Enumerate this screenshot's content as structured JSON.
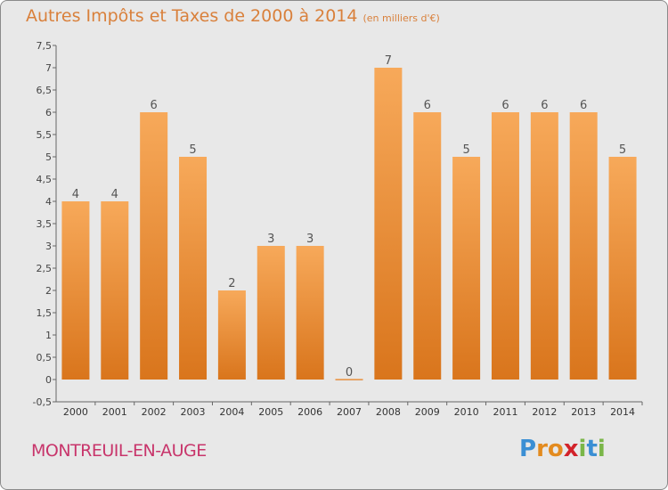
{
  "header": {
    "title": "Autres Impôts et Taxes de 2000 à 2014",
    "unit": "(en milliers d'€)"
  },
  "footer": {
    "commune": "MONTREUIL-EN-AUGE",
    "logo_letters": [
      "P",
      "r",
      "o",
      "x",
      "i",
      "t",
      "i"
    ],
    "logo_colors": [
      "#3b8fd4",
      "#e38b1f",
      "#e38b1f",
      "#d2232a",
      "#7ab648",
      "#3b8fd4",
      "#7ab648"
    ]
  },
  "colors": {
    "bar": "#f0963c",
    "bar_dark": "#d97a22",
    "title": "#d9803b",
    "commune": "#c8356b",
    "axis": "#555555"
  },
  "chart_data": {
    "type": "bar",
    "categories": [
      "2000",
      "2001",
      "2002",
      "2003",
      "2004",
      "2005",
      "2006",
      "2007",
      "2008",
      "2009",
      "2010",
      "2011",
      "2012",
      "2013",
      "2014"
    ],
    "values": [
      4,
      4,
      6,
      5,
      2,
      3,
      3,
      0,
      7,
      6,
      5,
      6,
      6,
      6,
      5
    ],
    "data_labels": [
      "4",
      "4",
      "6",
      "5",
      "2",
      "3",
      "3",
      "0",
      "7",
      "6",
      "5",
      "6",
      "6",
      "6",
      "5"
    ],
    "ylim": [
      -0.5,
      7.5
    ],
    "yticks": [
      -0.5,
      0,
      0.5,
      1,
      1.5,
      2,
      2.5,
      3,
      3.5,
      4,
      4.5,
      5,
      5.5,
      6,
      6.5,
      7,
      7.5
    ],
    "ytick_labels": [
      "-0,5",
      "0",
      "0,5",
      "1",
      "1,5",
      "2",
      "2,5",
      "3",
      "3,5",
      "4",
      "4,5",
      "5",
      "5,5",
      "6",
      "6,5",
      "7",
      "7,5"
    ],
    "grid": false,
    "title": "Autres Impôts et Taxes de 2000 à 2014",
    "xlabel": "",
    "ylabel": ""
  }
}
